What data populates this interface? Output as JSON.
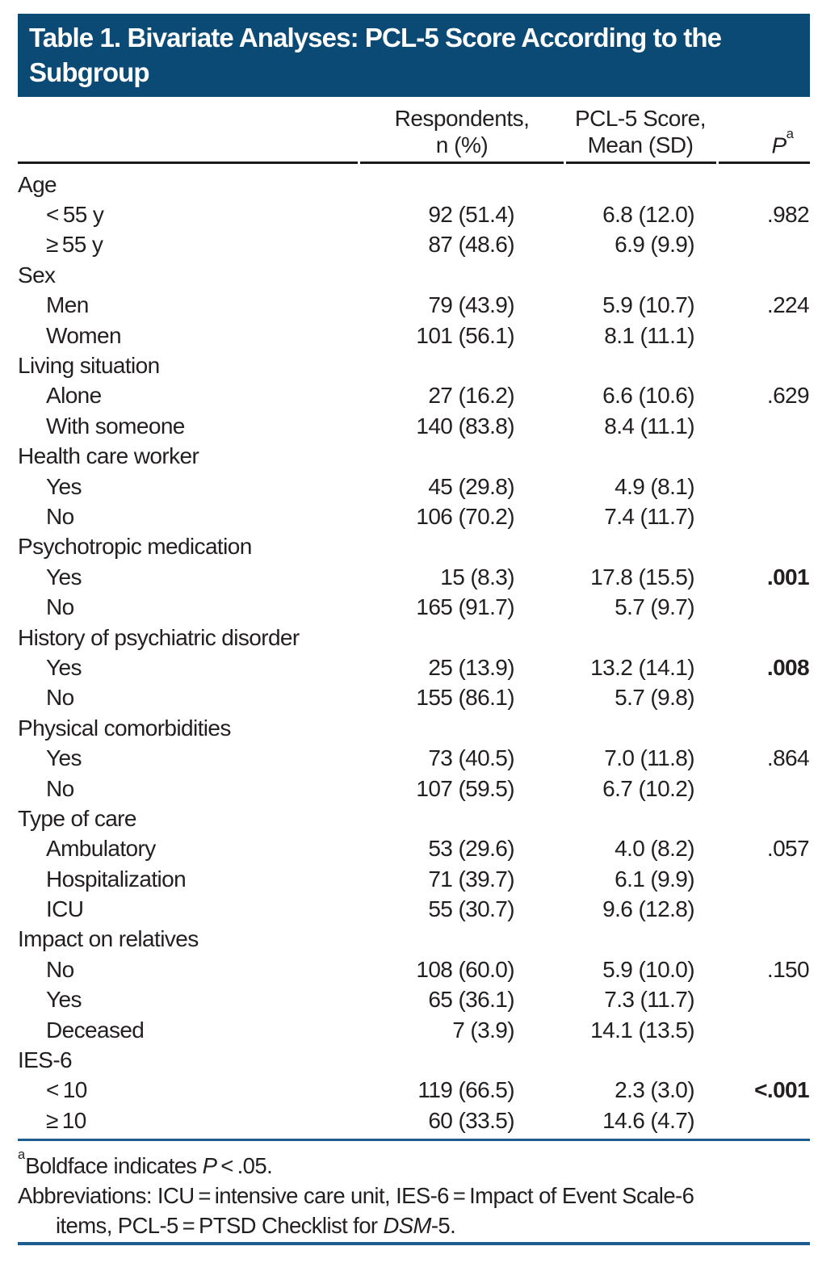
{
  "colors": {
    "header_bar": "#0B4A74",
    "accent_rule": "#1E5C8F",
    "header_rule": "#1A1A1A",
    "text": "#231F20"
  },
  "title": {
    "line1": "Table 1. Bivariate Analyses: PCL-5 Score According to the",
    "line2": "Subgroup"
  },
  "columns": {
    "respondents": {
      "line1": "Respondents,",
      "line2": "n (%)"
    },
    "pcl": {
      "line1": "PCL-5 Score,",
      "line2": "Mean (SD)"
    },
    "p": {
      "label": "P",
      "superscript": "a"
    }
  },
  "groups": [
    {
      "label": "Age",
      "rows": [
        {
          "label": "< 55 y",
          "respondents": "92 (51.4)",
          "pcl": "6.8 (12.0)",
          "p": ".982",
          "p_bold": false
        },
        {
          "label": "≥ 55 y",
          "respondents": "87 (48.6)",
          "pcl": "6.9 (9.9)",
          "p": "",
          "p_bold": false
        }
      ]
    },
    {
      "label": "Sex",
      "rows": [
        {
          "label": "Men",
          "respondents": "79 (43.9)",
          "pcl": "5.9 (10.7)",
          "p": ".224",
          "p_bold": false
        },
        {
          "label": "Women",
          "respondents": "101 (56.1)",
          "pcl": "8.1 (11.1)",
          "p": "",
          "p_bold": false
        }
      ]
    },
    {
      "label": "Living situation",
      "rows": [
        {
          "label": "Alone",
          "respondents": "27 (16.2)",
          "pcl": "6.6 (10.6)",
          "p": ".629",
          "p_bold": false
        },
        {
          "label": "With someone",
          "respondents": "140 (83.8)",
          "pcl": "8.4 (11.1)",
          "p": "",
          "p_bold": false
        }
      ]
    },
    {
      "label": "Health care worker",
      "rows": [
        {
          "label": "Yes",
          "respondents": "45 (29.8)",
          "pcl": "4.9 (8.1)",
          "p": "",
          "p_bold": false
        },
        {
          "label": "No",
          "respondents": "106 (70.2)",
          "pcl": "7.4 (11.7)",
          "p": "",
          "p_bold": false
        }
      ]
    },
    {
      "label": "Psychotropic medication",
      "rows": [
        {
          "label": "Yes",
          "respondents": "15 (8.3)",
          "pcl": "17.8 (15.5)",
          "p": ".001",
          "p_bold": true
        },
        {
          "label": "No",
          "respondents": "165 (91.7)",
          "pcl": "5.7 (9.7)",
          "p": "",
          "p_bold": false
        }
      ]
    },
    {
      "label": "History of psychiatric disorder",
      "rows": [
        {
          "label": "Yes",
          "respondents": "25 (13.9)",
          "pcl": "13.2 (14.1)",
          "p": ".008",
          "p_bold": true
        },
        {
          "label": "No",
          "respondents": "155 (86.1)",
          "pcl": "5.7 (9.8)",
          "p": "",
          "p_bold": false
        }
      ]
    },
    {
      "label": "Physical comorbidities",
      "rows": [
        {
          "label": "Yes",
          "respondents": "73 (40.5)",
          "pcl": "7.0 (11.8)",
          "p": ".864",
          "p_bold": false
        },
        {
          "label": "No",
          "respondents": "107 (59.5)",
          "pcl": "6.7 (10.2)",
          "p": "",
          "p_bold": false
        }
      ]
    },
    {
      "label": "Type of care",
      "rows": [
        {
          "label": "Ambulatory",
          "respondents": "53 (29.6)",
          "pcl": "4.0 (8.2)",
          "p": ".057",
          "p_bold": false
        },
        {
          "label": "Hospitalization",
          "respondents": "71 (39.7)",
          "pcl": "6.1 (9.9)",
          "p": "",
          "p_bold": false
        },
        {
          "label": "ICU",
          "respondents": "55 (30.7)",
          "pcl": "9.6 (12.8)",
          "p": "",
          "p_bold": false
        }
      ]
    },
    {
      "label": "Impact on relatives",
      "rows": [
        {
          "label": "No",
          "respondents": "108 (60.0)",
          "pcl": "5.9 (10.0)",
          "p": ".150",
          "p_bold": false
        },
        {
          "label": "Yes",
          "respondents": "65 (36.1)",
          "pcl": "7.3 (11.7)",
          "p": "",
          "p_bold": false
        },
        {
          "label": "Deceased",
          "respondents": "7 (3.9)",
          "pcl": "14.1 (13.5)",
          "p": "",
          "p_bold": false
        }
      ]
    },
    {
      "label": "IES-6",
      "rows": [
        {
          "label": "< 10",
          "respondents": "119 (66.5)",
          "pcl": "2.3 (3.0)",
          "p": "<.001",
          "p_bold": true
        },
        {
          "label": "≥ 10",
          "respondents": "60 (33.5)",
          "pcl": "14.6 (4.7)",
          "p": "",
          "p_bold": false
        }
      ]
    }
  ],
  "footnotes": {
    "marker": "a",
    "boldface_pre": "Boldface indicates ",
    "boldface_italic": "P",
    "boldface_post": " < .05.",
    "abbr_line1": "Abbreviations: ICU = intensive care unit, IES-6 = Impact of Event Scale-6",
    "abbr_line2_pre": "items, PCL-5 = PTSD Checklist for ",
    "abbr_italic": "DSM",
    "abbr_post": "-5."
  }
}
